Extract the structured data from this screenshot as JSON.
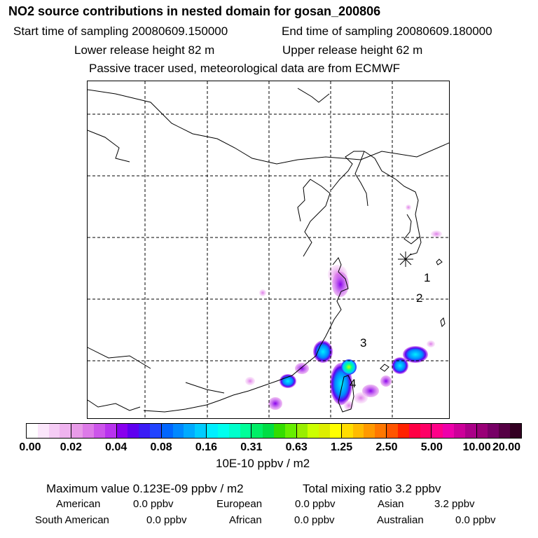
{
  "header": {
    "title": "NO2 source contributions in nested domain for gosan_200806",
    "start_time": "Start time of sampling 20080609.150000",
    "end_time": "End time of sampling 20080609.180000",
    "lower_release": "Lower release height   82 m",
    "upper_release": "Upper release height   62 m",
    "tracer_note": "Passive tracer used, meteorological data are from ECMWF"
  },
  "map": {
    "labels": [
      "1",
      "2",
      "3",
      "4"
    ],
    "station_marker": "asterisk-marker"
  },
  "colorbar": {
    "ticks": [
      "0.00",
      "0.02",
      "0.04",
      "0.08",
      "0.16",
      "0.31",
      "0.63",
      "1.25",
      "2.50",
      "5.00",
      "10.00",
      "20.00"
    ],
    "unit": "10E-10 ppbv / m2",
    "segments": [
      [
        "#ffffff",
        "#fbe6fb",
        "#f5ccf5",
        "#efb3ef"
      ],
      [
        "#e89be8",
        "#dd7ae8",
        "#cc55ea",
        "#b833ee"
      ],
      [
        "#8800ee",
        "#5f00f0",
        "#3b1cf5",
        "#2244ff"
      ],
      [
        "#0066ff",
        "#0088ff",
        "#00aaff",
        "#00ccff"
      ],
      [
        "#00eeff",
        "#00ffee",
        "#00ffcc",
        "#00ff99"
      ],
      [
        "#00ee66",
        "#00dd44",
        "#33dd00",
        "#66ee00"
      ],
      [
        "#99ee00",
        "#ccff00",
        "#ddee00",
        "#ffff00"
      ],
      [
        "#ffdd00",
        "#ffbb00",
        "#ff9900",
        "#ff7700"
      ],
      [
        "#ff5500",
        "#ff2200",
        "#ff0044",
        "#ff0066"
      ],
      [
        "#ff0088",
        "#ee00aa",
        "#cc0099",
        "#aa0088"
      ],
      [
        "#990077",
        "#770066",
        "#550044",
        "#330022"
      ]
    ]
  },
  "stats": {
    "max_value": "Maximum value  0.123E-09 ppbv / m2",
    "total_mixing": "Total mixing ratio       3.2 ppbv",
    "regions_row1": [
      {
        "name": "American",
        "value": "0.0 ppbv"
      },
      {
        "name": "European",
        "value": "0.0 ppbv"
      },
      {
        "name": "Asian",
        "value": "3.2 ppbv"
      }
    ],
    "regions_row2": [
      {
        "name": "South American",
        "value": "0.0 ppbv"
      },
      {
        "name": "African",
        "value": "0.0 ppbv"
      },
      {
        "name": "Australian",
        "value": "0.0 ppbv"
      }
    ]
  }
}
